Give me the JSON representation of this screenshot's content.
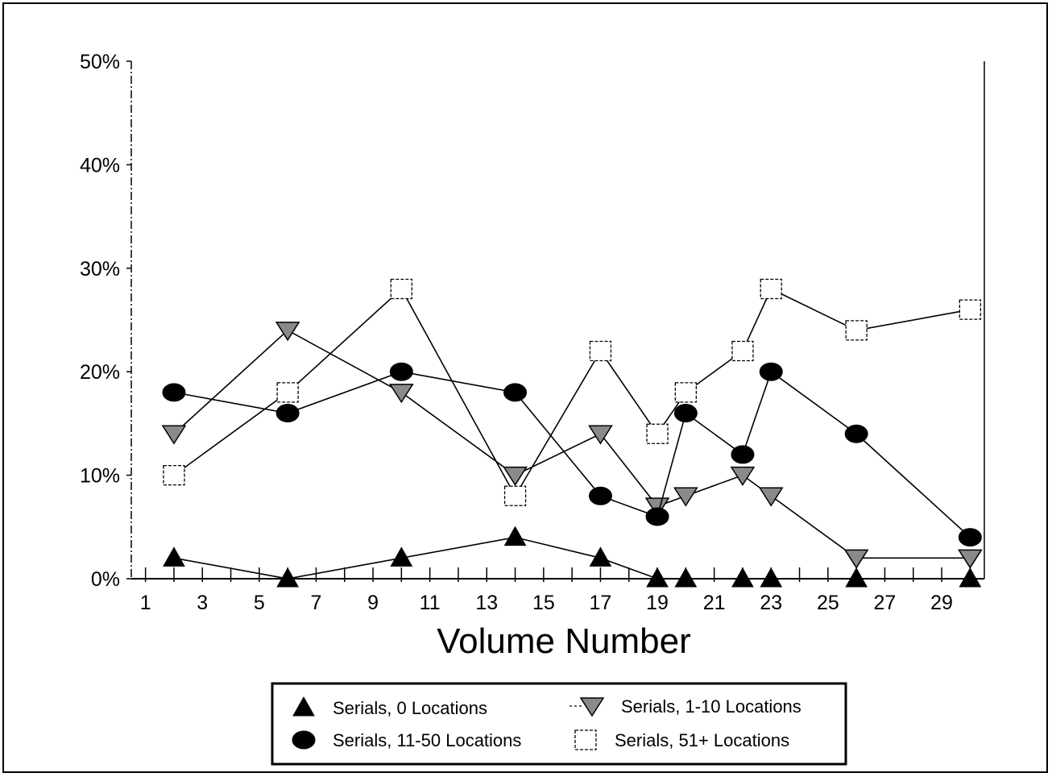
{
  "chart_data": {
    "type": "line",
    "title": "",
    "xlabel": "Volume Number",
    "ylabel": "",
    "xlim": [
      0.5,
      30.5
    ],
    "ylim": [
      0,
      50
    ],
    "x_tick_labels": [
      "1",
      "3",
      "5",
      "7",
      "9",
      "11",
      "13",
      "15",
      "17",
      "19",
      "21",
      "23",
      "25",
      "27",
      "29"
    ],
    "y_tick_labels": [
      "0%",
      "10%",
      "20%",
      "30%",
      "40%",
      "50%"
    ],
    "legend_position": "bottom",
    "grid": false,
    "series": [
      {
        "name": "Serials, 0 Locations",
        "marker": "triangle-up",
        "color": "#000000",
        "x": [
          2,
          6,
          10,
          14,
          17,
          19,
          20,
          22,
          23,
          26,
          30
        ],
        "values": [
          2,
          0,
          2,
          4,
          2,
          0,
          0,
          0,
          0,
          0,
          0
        ]
      },
      {
        "name": "Serials, 1-10 Locations",
        "marker": "triangle-down",
        "color": "#888888",
        "x": [
          2,
          6,
          10,
          14,
          17,
          19,
          20,
          22,
          23,
          26,
          30
        ],
        "values": [
          14,
          24,
          18,
          10,
          14,
          7,
          8,
          10,
          8,
          2,
          2
        ]
      },
      {
        "name": "Serials, 11-50 Locations",
        "marker": "circle",
        "color": "#000000",
        "x": [
          2,
          6,
          10,
          14,
          17,
          19,
          20,
          22,
          23,
          26,
          30
        ],
        "values": [
          18,
          16,
          20,
          18,
          8,
          6,
          16,
          12,
          20,
          14,
          4
        ]
      },
      {
        "name": "Serials, 51+ Locations",
        "marker": "square",
        "color": "#ffffff",
        "x": [
          2,
          6,
          10,
          14,
          17,
          19,
          20,
          22,
          23,
          26,
          30
        ],
        "values": [
          10,
          18,
          28,
          8,
          22,
          14,
          18,
          22,
          28,
          24,
          26
        ]
      }
    ]
  }
}
